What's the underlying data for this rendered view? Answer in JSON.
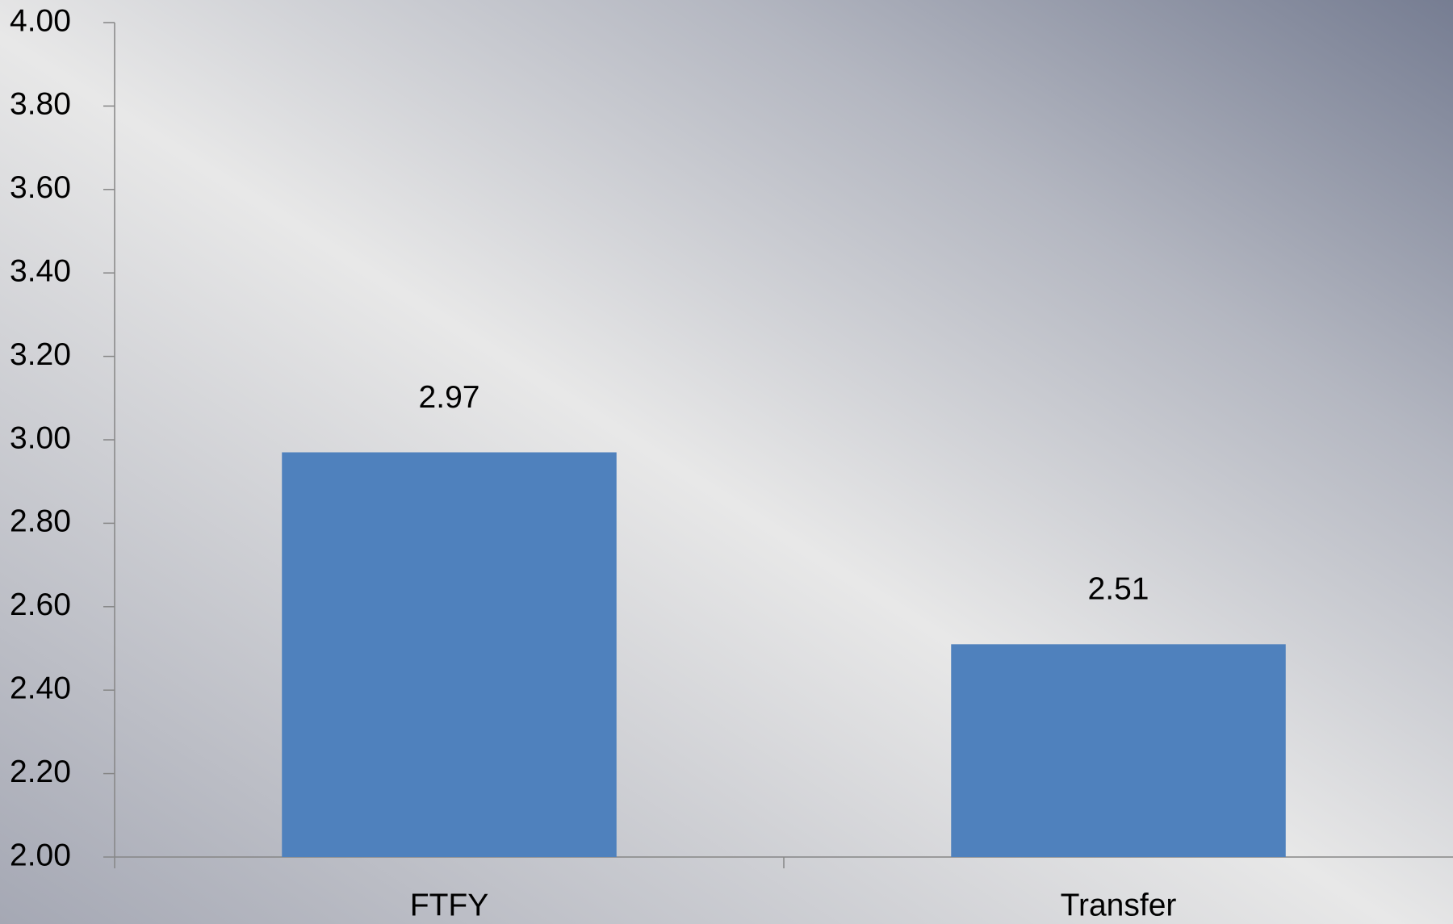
{
  "chart_data": {
    "type": "bar",
    "categories": [
      "FTFY",
      "Transfer"
    ],
    "values": [
      2.97,
      2.51
    ],
    "color": "#4f81bd",
    "ylim": [
      2,
      4
    ],
    "yticks": [
      {
        "value": 2,
        "label": "2.00"
      },
      {
        "value": 2.2,
        "label": "2.20"
      },
      {
        "value": 2.4,
        "label": "2.40"
      },
      {
        "value": 2.6,
        "label": "2.60"
      },
      {
        "value": 2.8,
        "label": "2.80"
      },
      {
        "value": 3,
        "label": "3.00"
      },
      {
        "value": 3.2,
        "label": "3.20"
      },
      {
        "value": 3.4,
        "label": "3.40"
      },
      {
        "value": 3.6,
        "label": "3.60"
      },
      {
        "value": 3.8,
        "label": "3.80"
      },
      {
        "value": 4,
        "label": "4.00"
      }
    ]
  }
}
